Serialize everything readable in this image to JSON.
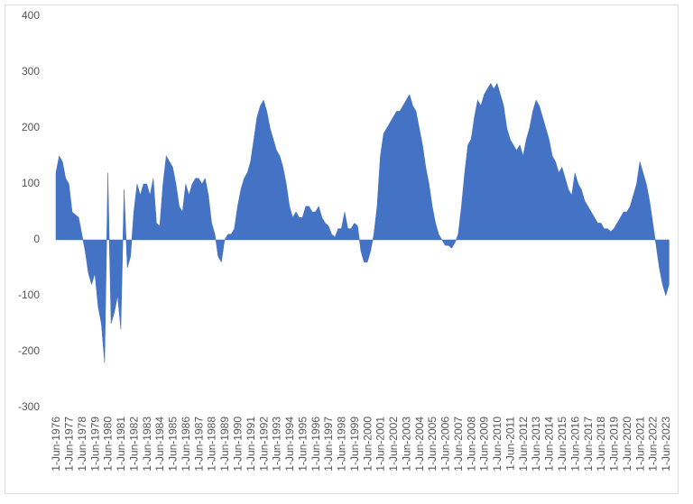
{
  "chart_data": {
    "type": "area",
    "color": "#4472c4",
    "categories": [
      "1-Jun-1976",
      null,
      null,
      null,
      "1-Jun-1977",
      null,
      null,
      null,
      "1-Jun-1978",
      null,
      null,
      null,
      "1-Jun-1979",
      null,
      null,
      null,
      "1-Jun-1980",
      null,
      null,
      null,
      "1-Jun-1981",
      null,
      null,
      null,
      "1-Jun-1982",
      null,
      null,
      null,
      "1-Jun-1983",
      null,
      null,
      null,
      "1-Jun-1984",
      null,
      null,
      null,
      "1-Jun-1985",
      null,
      null,
      null,
      "1-Jun-1986",
      null,
      null,
      null,
      "1-Jun-1987",
      null,
      null,
      null,
      "1-Jun-1988",
      null,
      null,
      null,
      "1-Jun-1989",
      null,
      null,
      null,
      "1-Jun-1990",
      null,
      null,
      null,
      "1-Jun-1991",
      null,
      null,
      null,
      "1-Jun-1992",
      null,
      null,
      null,
      "1-Jun-1993",
      null,
      null,
      null,
      "1-Jun-1994",
      null,
      null,
      null,
      "1-Jun-1995",
      null,
      null,
      null,
      "1-Jun-1996",
      null,
      null,
      null,
      "1-Jun-1997",
      null,
      null,
      null,
      "1-Jun-1998",
      null,
      null,
      null,
      "1-Jun-1999",
      null,
      null,
      null,
      "1-Jun-2000",
      null,
      null,
      null,
      "1-Jun-2001",
      null,
      null,
      null,
      "1-Jun-2002",
      null,
      null,
      null,
      "1-Jun-2003",
      null,
      null,
      null,
      "1-Jun-2004",
      null,
      null,
      null,
      "1-Jun-2005",
      null,
      null,
      null,
      "1-Jun-2006",
      null,
      null,
      null,
      "1-Jun-2007",
      null,
      null,
      null,
      "1-Jun-2008",
      null,
      null,
      null,
      "1-Jun-2009",
      null,
      null,
      null,
      "1-Jun-2010",
      null,
      null,
      null,
      "1-Jun-2011",
      null,
      null,
      null,
      "1-Jun-2012",
      null,
      null,
      null,
      "1-Jun-2013",
      null,
      null,
      null,
      "1-Jun-2014",
      null,
      null,
      null,
      "1-Jun-2015",
      null,
      null,
      null,
      "1-Jun-2016",
      null,
      null,
      null,
      "1-Jun-2017",
      null,
      null,
      null,
      "1-Jun-2018",
      null,
      null,
      null,
      "1-Jun-2019",
      null,
      null,
      null,
      "1-Jun-2020",
      null,
      null,
      null,
      "1-Jun-2021",
      null,
      null,
      null,
      "1-Jun-2022",
      null,
      null,
      null,
      "1-Jun-2023",
      null
    ],
    "values": [
      120,
      150,
      140,
      110,
      100,
      50,
      45,
      40,
      10,
      -20,
      -60,
      -80,
      -60,
      -120,
      -150,
      -220,
      120,
      -150,
      -130,
      -100,
      -160,
      90,
      -50,
      -30,
      50,
      100,
      80,
      100,
      100,
      80,
      110,
      30,
      25,
      100,
      150,
      140,
      130,
      100,
      60,
      50,
      100,
      80,
      100,
      110,
      110,
      100,
      110,
      80,
      30,
      10,
      -30,
      -40,
      0,
      10,
      10,
      20,
      60,
      90,
      110,
      120,
      140,
      180,
      220,
      240,
      250,
      230,
      200,
      180,
      160,
      150,
      130,
      100,
      60,
      40,
      50,
      40,
      40,
      60,
      60,
      50,
      50,
      60,
      40,
      30,
      25,
      10,
      5,
      20,
      20,
      50,
      20,
      20,
      30,
      25,
      -20,
      -40,
      -40,
      -20,
      10,
      60,
      150,
      190,
      200,
      210,
      220,
      230,
      230,
      240,
      250,
      260,
      240,
      230,
      200,
      170,
      130,
      100,
      60,
      30,
      10,
      0,
      -10,
      -10,
      -15,
      -5,
      10,
      60,
      120,
      170,
      180,
      220,
      250,
      240,
      260,
      270,
      280,
      270,
      280,
      260,
      240,
      200,
      180,
      170,
      160,
      170,
      150,
      180,
      200,
      230,
      250,
      240,
      220,
      200,
      180,
      150,
      140,
      120,
      130,
      110,
      90,
      80,
      120,
      100,
      90,
      70,
      60,
      50,
      40,
      30,
      30,
      20,
      20,
      15,
      20,
      30,
      40,
      50,
      50,
      60,
      80,
      100,
      140,
      120,
      100,
      70,
      30,
      -10,
      -50,
      -80,
      -100,
      -80
    ],
    "ylim": [
      -300,
      400
    ],
    "yticks": [
      -300,
      -200,
      -100,
      0,
      100,
      200,
      300,
      400
    ]
  }
}
